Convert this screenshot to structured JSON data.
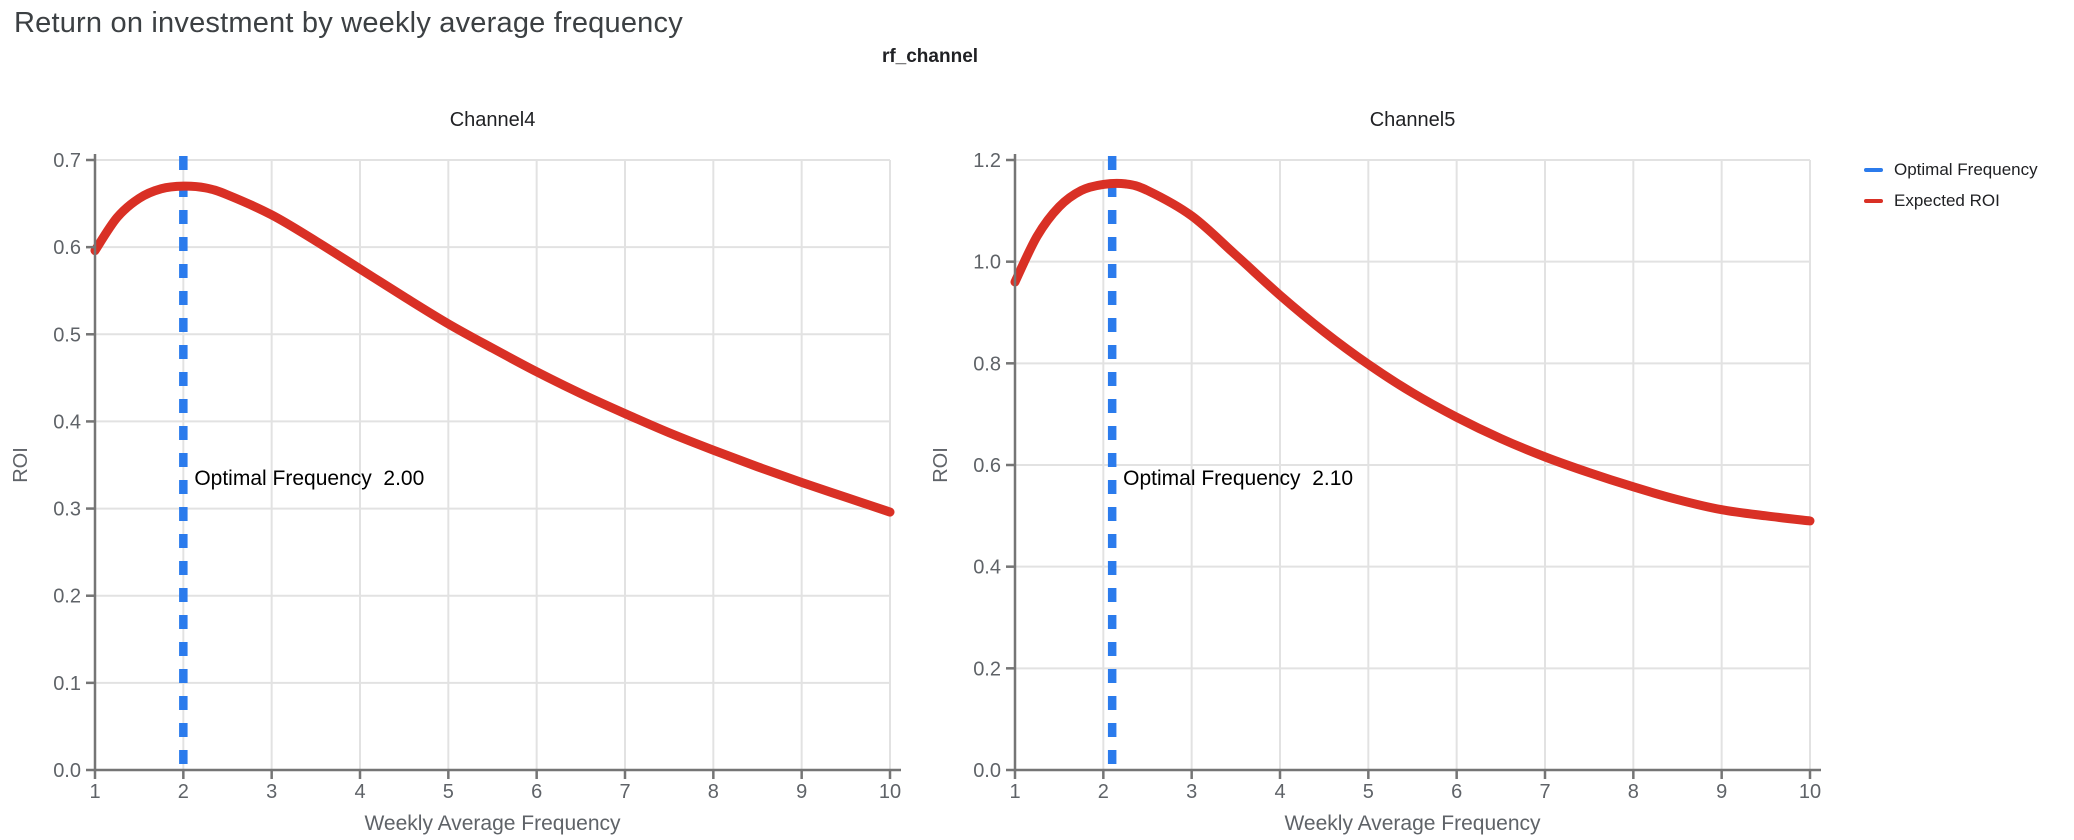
{
  "page": {
    "title": "Return on investment by weekly average frequency",
    "subtitle": "rf_channel"
  },
  "legend": {
    "position": "top-right",
    "items": [
      {
        "label": "Optimal Frequency",
        "color": "#2b7bec"
      },
      {
        "label": "Expected ROI",
        "color": "#d93025"
      }
    ]
  },
  "colors": {
    "expected_roi_line": "#d93025",
    "optimal_frequency_line": "#2b7bec",
    "gridline": "#e2e2e2",
    "axis_line": "#757575",
    "tick_label": "#5f6368",
    "axis_title": "#5f6368",
    "chart_title": "#202124",
    "page_title": "#3c4043",
    "annotation_text": "#000000"
  },
  "chart_data": [
    {
      "type": "line",
      "title": "Channel4",
      "xlabel": "Weekly Average Frequency",
      "ylabel": "ROI",
      "xlim": [
        1,
        10
      ],
      "ylim": [
        0,
        0.7
      ],
      "xticks": [
        1,
        2,
        3,
        4,
        5,
        6,
        7,
        8,
        9,
        10
      ],
      "yticks": [
        0,
        0.1,
        0.2,
        0.3,
        0.4,
        0.5,
        0.6,
        0.7
      ],
      "ytick_labels": [
        "0.0",
        "0.1",
        "0.2",
        "0.3",
        "0.4",
        "0.5",
        "0.6",
        "0.7"
      ],
      "grid": true,
      "legend_position": "outside-right",
      "optimal_frequency": 2.0,
      "annotation": "Optimal Frequency  2.00",
      "series": [
        {
          "name": "Expected ROI",
          "x": [
            1,
            1.25,
            1.5,
            1.75,
            2,
            2.25,
            2.5,
            3,
            3.5,
            4,
            4.5,
            5,
            5.5,
            6,
            6.5,
            7,
            7.5,
            8,
            8.5,
            9,
            9.5,
            10
          ],
          "y": [
            0.596,
            0.634,
            0.656,
            0.667,
            0.67,
            0.668,
            0.66,
            0.637,
            0.607,
            0.575,
            0.543,
            0.512,
            0.484,
            0.457,
            0.432,
            0.409,
            0.387,
            0.367,
            0.348,
            0.33,
            0.313,
            0.296
          ]
        }
      ]
    },
    {
      "type": "line",
      "title": "Channel5",
      "xlabel": "Weekly Average Frequency",
      "ylabel": "ROI",
      "xlim": [
        1,
        10
      ],
      "ylim": [
        0,
        1.2
      ],
      "xticks": [
        1,
        2,
        3,
        4,
        5,
        6,
        7,
        8,
        9,
        10
      ],
      "yticks": [
        0,
        0.2,
        0.4,
        0.6,
        0.8,
        1.0,
        1.2
      ],
      "ytick_labels": [
        "0.0",
        "0.2",
        "0.4",
        "0.6",
        "0.8",
        "1.0",
        "1.2"
      ],
      "grid": true,
      "legend_position": "outside-right",
      "optimal_frequency": 2.1,
      "annotation": "Optimal Frequency  2.10",
      "series": [
        {
          "name": "Expected ROI",
          "x": [
            1,
            1.25,
            1.5,
            1.75,
            2,
            2.25,
            2.5,
            3,
            3.5,
            4,
            4.5,
            5,
            5.5,
            6,
            6.5,
            7,
            7.5,
            8,
            8.5,
            9,
            9.5,
            10
          ],
          "y": [
            0.96,
            1.05,
            1.108,
            1.14,
            1.152,
            1.153,
            1.14,
            1.09,
            1.013,
            0.934,
            0.862,
            0.798,
            0.742,
            0.694,
            0.652,
            0.616,
            0.585,
            0.557,
            0.532,
            0.512,
            0.5,
            0.49
          ]
        }
      ]
    }
  ]
}
